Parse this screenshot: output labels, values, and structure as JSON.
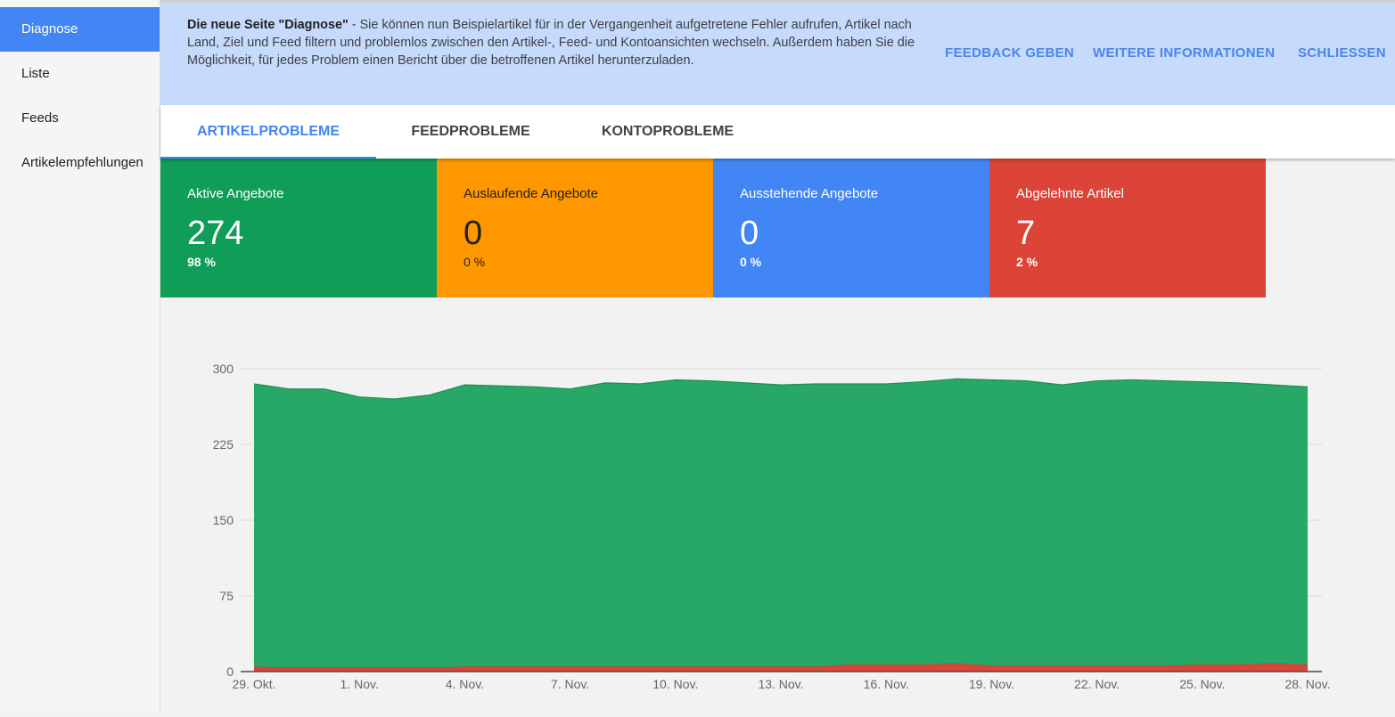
{
  "sidebar": {
    "items": [
      {
        "label": "Diagnose",
        "active": true
      },
      {
        "label": "Liste",
        "active": false
      },
      {
        "label": "Feeds",
        "active": false
      },
      {
        "label": "Artikelempfehlungen",
        "active": false
      }
    ]
  },
  "banner": {
    "bold": "Die neue Seite \"Diagnose\"",
    "text": " - Sie können nun Beispielartikel für in der Vergangenheit aufgetretene Fehler aufrufen, Artikel nach Land, Ziel und Feed filtern und problemlos zwischen den Artikel-, Feed- und Kontoansichten wechseln. Außerdem haben Sie die Möglichkeit, für jedes Problem einen Bericht über die betroffenen Artikel herunterzuladen.",
    "actions": {
      "feedback": "FEEDBACK GEBEN",
      "more_info": "WEITERE INFORMATIONEN",
      "close": "SCHLIESSEN"
    }
  },
  "tabs": [
    {
      "label": "ARTIKELPROBLEME",
      "active": true
    },
    {
      "label": "FEEDPROBLEME",
      "active": false
    },
    {
      "label": "KONTOPROBLEME",
      "active": false
    }
  ],
  "cards": [
    {
      "label": "Aktive Angebote",
      "value": "274",
      "percent": "98 %",
      "color": "#0f9d58"
    },
    {
      "label": "Auslaufende Angebote",
      "value": "0",
      "percent": "0 %",
      "color": "#ff9800"
    },
    {
      "label": "Ausstehende Angebote",
      "value": "0",
      "percent": "0 %",
      "color": "#4285f4"
    },
    {
      "label": "Abgelehnte Artikel",
      "value": "7",
      "percent": "2 %",
      "color": "#db4437"
    }
  ],
  "chart_data": {
    "type": "area",
    "stacked": true,
    "ylim": [
      0,
      300
    ],
    "yticks": [
      0,
      75,
      150,
      225,
      300
    ],
    "x_tick_labels": [
      "29. Okt.",
      "1. Nov.",
      "4. Nov.",
      "7. Nov.",
      "10. Nov.",
      "13. Nov.",
      "16. Nov.",
      "19. Nov.",
      "22. Nov.",
      "25. Nov.",
      "28. Nov."
    ],
    "x": [
      "29. Okt.",
      "30. Okt.",
      "31. Okt.",
      "1. Nov.",
      "2. Nov.",
      "3. Nov.",
      "4. Nov.",
      "5. Nov.",
      "6. Nov.",
      "7. Nov.",
      "8. Nov.",
      "9. Nov.",
      "10. Nov.",
      "11. Nov.",
      "12. Nov.",
      "13. Nov.",
      "14. Nov.",
      "15. Nov.",
      "16. Nov.",
      "17. Nov.",
      "18. Nov.",
      "19. Nov.",
      "20. Nov.",
      "21. Nov.",
      "22. Nov.",
      "23. Nov.",
      "24. Nov.",
      "25. Nov.",
      "26. Nov.",
      "27. Nov.",
      "28. Nov."
    ],
    "series": [
      {
        "color": "#db4437",
        "values": [
          5,
          4,
          4,
          4,
          4,
          4,
          5,
          5,
          5,
          5,
          5,
          5,
          5,
          5,
          5,
          5,
          5,
          7,
          7,
          7,
          8,
          6,
          6,
          6,
          6,
          6,
          6,
          7,
          7,
          8,
          7
        ]
      },
      {
        "color": "#27a866",
        "values": [
          280,
          276,
          276,
          268,
          266,
          270,
          279,
          278,
          277,
          275,
          281,
          280,
          284,
          283,
          281,
          279,
          280,
          278,
          278,
          280,
          282,
          283,
          282,
          278,
          282,
          283,
          282,
          280,
          279,
          276,
          275
        ]
      }
    ]
  }
}
